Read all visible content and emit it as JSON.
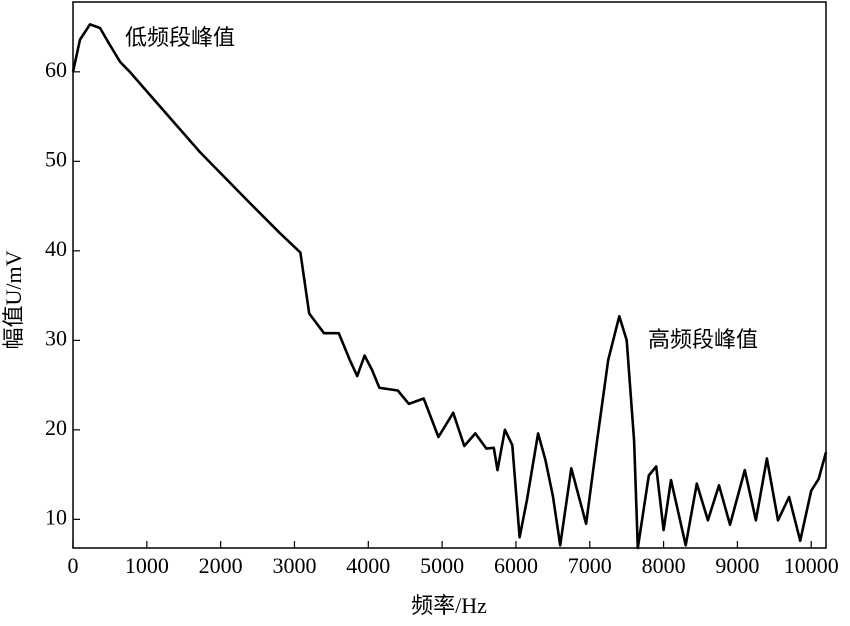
{
  "chart_data": {
    "type": "line",
    "xlabel": "频率/Hz",
    "ylabel": "幅值U/mV",
    "annotations": [
      "低频段峰值",
      "高频段峰值"
    ],
    "xlim": [
      0,
      10200
    ],
    "ylim": [
      6.8,
      67.8
    ],
    "xticks": [
      0,
      1000,
      2000,
      3000,
      4000,
      5000,
      6000,
      7000,
      8000,
      9000,
      10000
    ],
    "yticks": [
      10,
      20,
      30,
      40,
      50,
      60
    ],
    "color": "#000000",
    "x": [
      0,
      95,
      230,
      366,
      500,
      640,
      770,
      1045,
      1723,
      2400,
      2800,
      3080,
      3200,
      3400,
      3600,
      3750,
      3850,
      3950,
      4050,
      4150,
      4400,
      4550,
      4750,
      4950,
      5150,
      5300,
      5450,
      5600,
      5700,
      5750,
      5850,
      5950,
      6050,
      6150,
      6300,
      6400,
      6500,
      6600,
      6750,
      6950,
      7100,
      7250,
      7400,
      7500,
      7600,
      7650,
      7800,
      7900,
      8000,
      8100,
      8300,
      8450,
      8600,
      8750,
      8900,
      9100,
      9250,
      9400,
      9550,
      9700,
      9850,
      10000,
      10100,
      10200
    ],
    "values": [
      60,
      63.6,
      65.3,
      64.9,
      63,
      61.1,
      60,
      57.4,
      51,
      45.3,
      42,
      39.8,
      33,
      30.8,
      30.8,
      27.8,
      26,
      28.3,
      26.7,
      24.7,
      24.4,
      22.9,
      23.5,
      19.2,
      21.9,
      18.2,
      19.6,
      17.9,
      18,
      15.5,
      20,
      18.3,
      8,
      12.2,
      19.6,
      16.6,
      12.6,
      7.1,
      15.7,
      9.5,
      18.8,
      27.8,
      32.7,
      30,
      18.8,
      6.8,
      14.9,
      15.9,
      8.8,
      14.4,
      7.1,
      14,
      9.9,
      13.8,
      9.4,
      15.5,
      9.9,
      16.8,
      9.9,
      12.5,
      7.6,
      13.2,
      14.5,
      17.5
    ]
  }
}
